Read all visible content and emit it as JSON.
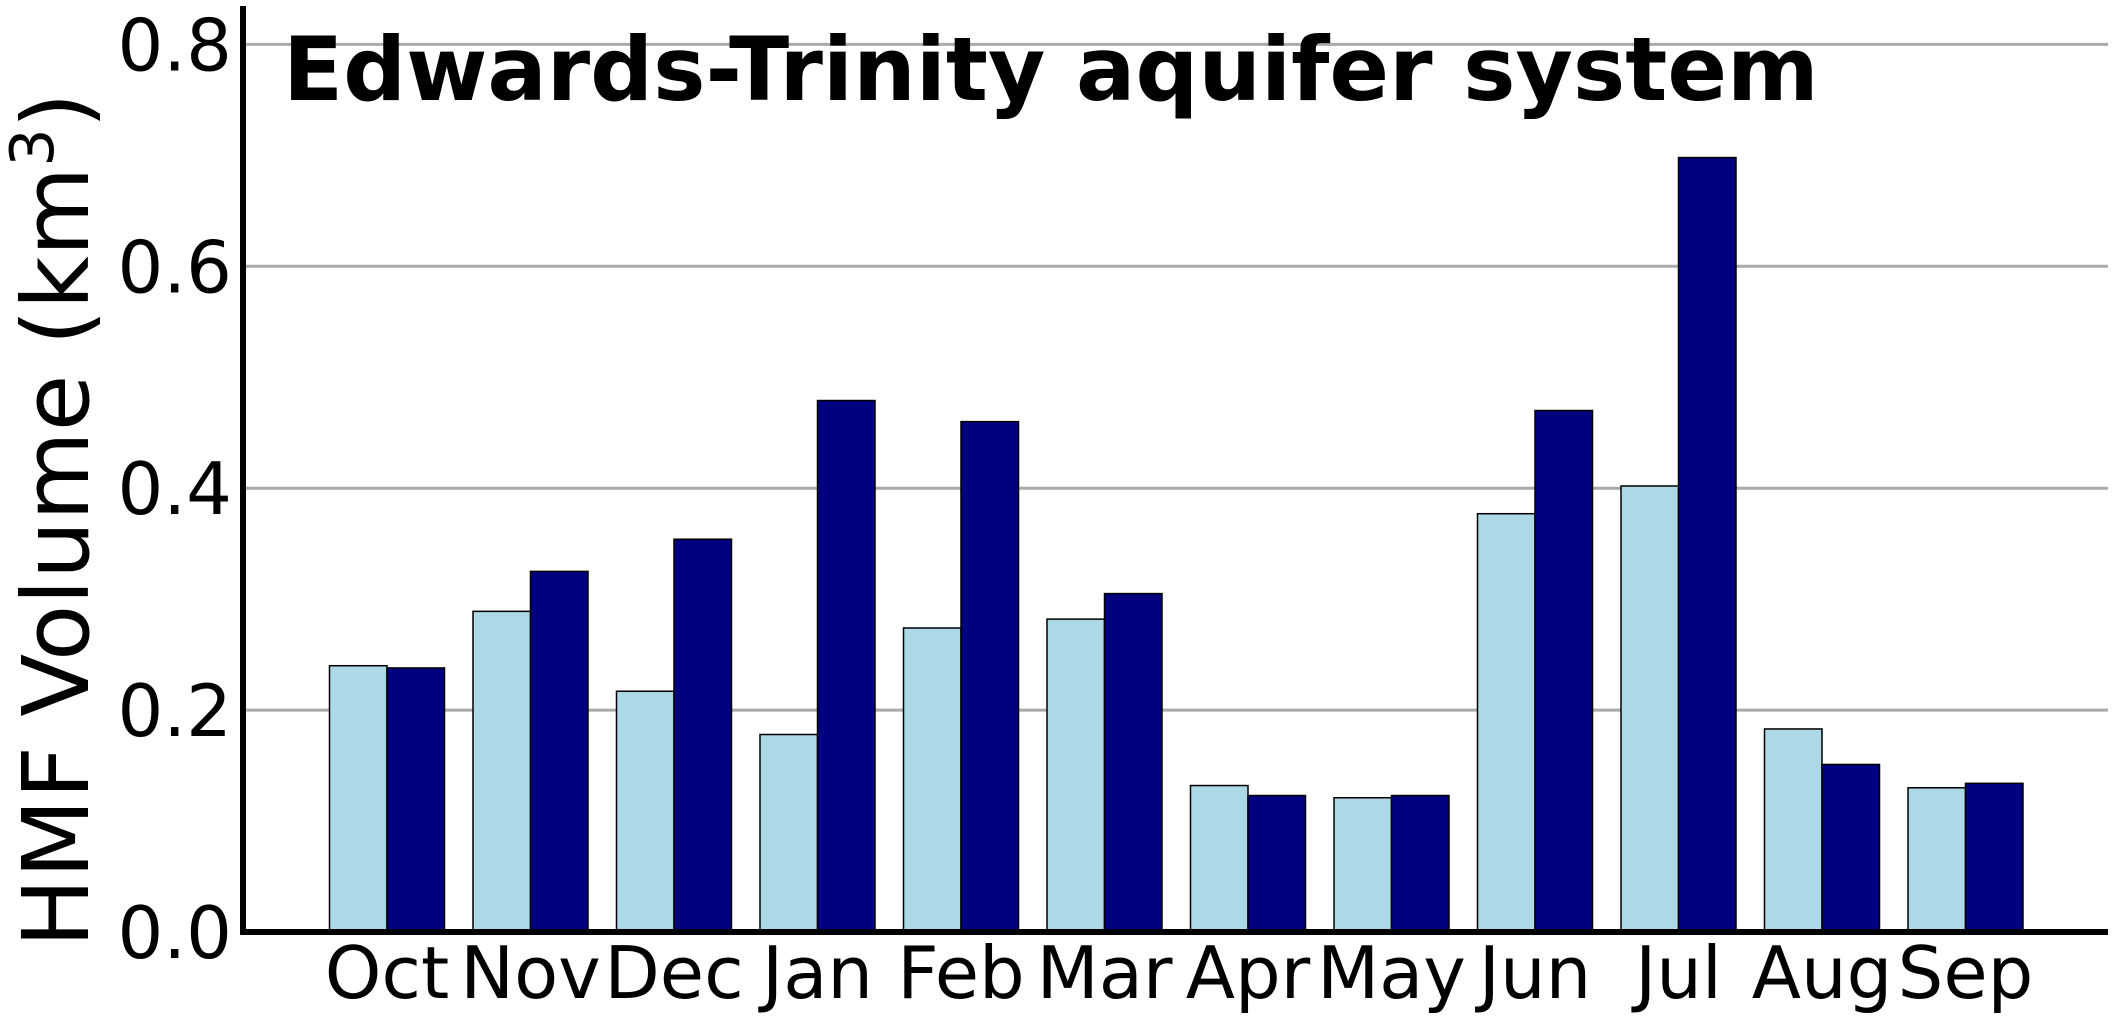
{
  "chart_data": {
    "type": "bar",
    "title": "Edwards-Trinity aquifer system",
    "xlabel": "",
    "ylabel_main": "HMF Volume (km",
    "ylabel_sup": "3",
    "ylabel_close": ")",
    "categories": [
      "Oct",
      "Nov",
      "Dec",
      "Jan",
      "Feb",
      "Mar",
      "Apr",
      "May",
      "Jun",
      "Jul",
      "Aug",
      "Sep"
    ],
    "series": [
      {
        "color": "#add8e6",
        "values": [
          0.24,
          0.289,
          0.217,
          0.178,
          0.274,
          0.282,
          0.132,
          0.121,
          0.377,
          0.402,
          0.183,
          0.13
        ]
      },
      {
        "color": "#000080",
        "values": [
          0.238,
          0.325,
          0.354,
          0.479,
          0.46,
          0.305,
          0.123,
          0.123,
          0.47,
          0.698,
          0.151,
          0.134
        ]
      }
    ],
    "ylim": [
      0,
      0.84
    ],
    "yticks": [
      0.0,
      0.2,
      0.4,
      0.6,
      0.8
    ],
    "ytick_labels": [
      "0.0",
      "0.2",
      "0.4",
      "0.6",
      "0.8"
    ],
    "grid": "horizontal",
    "legend": "none"
  }
}
